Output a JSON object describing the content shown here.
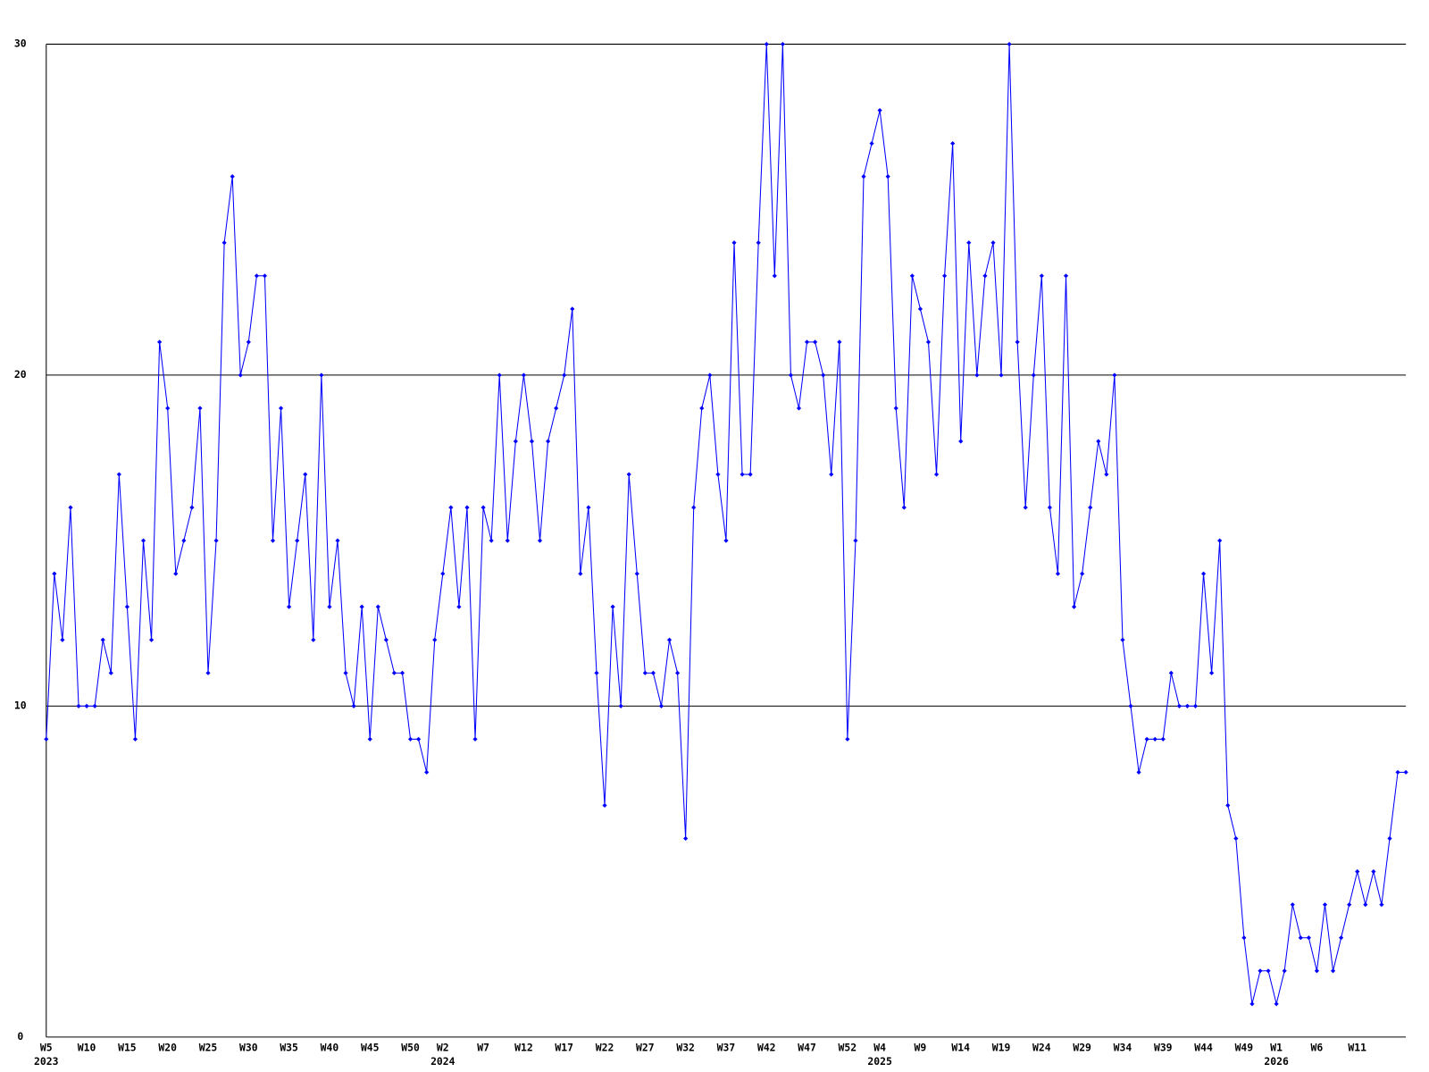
{
  "chart_data": {
    "type": "line",
    "color": "#0000ff",
    "grid": true,
    "ylim": [
      0,
      30
    ],
    "yticks": [
      0,
      10,
      20,
      30
    ],
    "categories": [
      "W5",
      null,
      null,
      null,
      null,
      "W10",
      null,
      null,
      null,
      null,
      "W15",
      null,
      null,
      null,
      null,
      "W20",
      null,
      null,
      null,
      null,
      "W25",
      null,
      null,
      null,
      null,
      "W30",
      null,
      null,
      null,
      null,
      "W35",
      null,
      null,
      null,
      null,
      "W40",
      null,
      null,
      null,
      null,
      "W45",
      null,
      null,
      null,
      null,
      "W50",
      null,
      null,
      null,
      "W2",
      null,
      null,
      null,
      null,
      "W7",
      null,
      null,
      null,
      null,
      "W12",
      null,
      null,
      null,
      null,
      "W17",
      null,
      null,
      null,
      null,
      "W22",
      null,
      null,
      null,
      null,
      "W27",
      null,
      null,
      null,
      null,
      "W32",
      null,
      null,
      null,
      null,
      "W37",
      null,
      null,
      null,
      null,
      "W42",
      null,
      null,
      null,
      null,
      "W47",
      null,
      null,
      null,
      null,
      "W52",
      null,
      null,
      null,
      "W4",
      null,
      null,
      null,
      null,
      "W9",
      null,
      null,
      null,
      null,
      "W14",
      null,
      null,
      null,
      null,
      "W19",
      null,
      null,
      null,
      null,
      "W24",
      null,
      null,
      null,
      null,
      "W29",
      null,
      null,
      null,
      null,
      "W34",
      null,
      null,
      null,
      null,
      "W39",
      null,
      null,
      null,
      null,
      "W44",
      null,
      null,
      null,
      null,
      "W49",
      null,
      null,
      null,
      "W1",
      null,
      null,
      null,
      null,
      "W6",
      null,
      null,
      null,
      null,
      "W11",
      null,
      null,
      null,
      null,
      null,
      null
    ],
    "category_years": [
      "2023",
      null,
      null,
      null,
      null,
      null,
      null,
      null,
      null,
      null,
      null,
      null,
      null,
      null,
      null,
      null,
      null,
      null,
      null,
      null,
      null,
      null,
      null,
      null,
      null,
      null,
      null,
      null,
      null,
      null,
      null,
      null,
      null,
      null,
      null,
      null,
      null,
      null,
      null,
      null,
      null,
      null,
      null,
      null,
      null,
      null,
      null,
      null,
      null,
      "2024",
      null,
      null,
      null,
      null,
      null,
      null,
      null,
      null,
      null,
      null,
      null,
      null,
      null,
      null,
      null,
      null,
      null,
      null,
      null,
      null,
      null,
      null,
      null,
      null,
      null,
      null,
      null,
      null,
      null,
      null,
      null,
      null,
      null,
      null,
      null,
      null,
      null,
      null,
      null,
      null,
      null,
      null,
      null,
      null,
      null,
      null,
      null,
      null,
      null,
      null,
      null,
      null,
      null,
      "2025",
      null,
      null,
      null,
      null,
      null,
      null,
      null,
      null,
      null,
      null,
      null,
      null,
      null,
      null,
      null,
      null,
      null,
      null,
      null,
      null,
      null,
      null,
      null,
      null,
      null,
      null,
      null,
      null,
      null,
      null,
      null,
      null,
      null,
      null,
      null,
      null,
      null,
      null,
      null,
      null,
      null,
      null,
      null,
      null,
      null,
      null,
      null,
      null,
      "2026",
      null,
      null,
      null,
      null,
      null,
      null,
      null,
      null,
      null,
      null,
      null,
      null,
      null,
      null,
      null,
      null
    ],
    "values": [
      9,
      14,
      12,
      16,
      10,
      10,
      10,
      12,
      11,
      17,
      13,
      9,
      15,
      12,
      21,
      19,
      14,
      15,
      16,
      19,
      11,
      15,
      24,
      26,
      20,
      21,
      23,
      23,
      15,
      19,
      13,
      15,
      17,
      12,
      20,
      13,
      15,
      11,
      10,
      13,
      9,
      13,
      12,
      11,
      11,
      9,
      9,
      8,
      12,
      14,
      16,
      13,
      16,
      9,
      16,
      15,
      20,
      15,
      18,
      20,
      18,
      15,
      18,
      19,
      20,
      22,
      14,
      16,
      11,
      7,
      13,
      10,
      17,
      14,
      11,
      11,
      10,
      12,
      11,
      6,
      16,
      19,
      20,
      17,
      15,
      24,
      17,
      17,
      24,
      30,
      23,
      30,
      20,
      19,
      21,
      21,
      20,
      17,
      21,
      9,
      15,
      26,
      27,
      28,
      26,
      19,
      16,
      23,
      22,
      21,
      17,
      23,
      27,
      18,
      24,
      20,
      23,
      24,
      20,
      30,
      21,
      16,
      20,
      23,
      16,
      14,
      23,
      13,
      14,
      16,
      18,
      17,
      20,
      12,
      10,
      8,
      9,
      9,
      9,
      11,
      10,
      10,
      10,
      14,
      11,
      15,
      7,
      6,
      3,
      1,
      2,
      2,
      1,
      2,
      4,
      3,
      3,
      2,
      4,
      2,
      3,
      4,
      5,
      4,
      5,
      4,
      6,
      8,
      8
    ]
  }
}
